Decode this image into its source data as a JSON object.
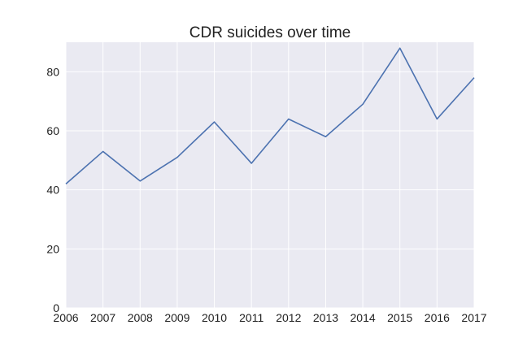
{
  "chart_data": {
    "type": "line",
    "title": "CDR suicides over time",
    "xlabel": "",
    "ylabel": "",
    "x": [
      2006,
      2007,
      2008,
      2009,
      2010,
      2011,
      2012,
      2013,
      2014,
      2015,
      2016,
      2017
    ],
    "series": [
      {
        "values": [
          42,
          53,
          43,
          51,
          63,
          49,
          64,
          58,
          69,
          88,
          64,
          78
        ]
      }
    ],
    "xlim": [
      2006,
      2017
    ],
    "ylim": [
      0,
      90
    ],
    "xticks": [
      "2006",
      "2007",
      "2008",
      "2009",
      "2010",
      "2011",
      "2012",
      "2013",
      "2014",
      "2015",
      "2016",
      "2017"
    ],
    "yticks": [
      "0",
      "20",
      "40",
      "60",
      "80"
    ],
    "grid": true,
    "colors": {
      "plot_background": "#eaeaf2",
      "grid": "#ffffff",
      "line": "#4c72b0",
      "text": "#222222"
    }
  }
}
